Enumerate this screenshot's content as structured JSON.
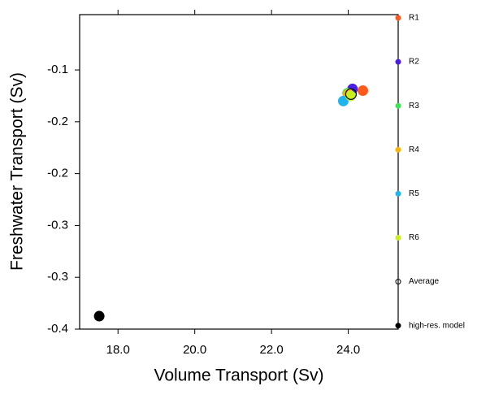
{
  "chart_data": {
    "type": "scatter",
    "x_label": "Volume Transport (Sv)",
    "y_label": "Freshwater Transport (Sv)",
    "xlim": [
      17,
      25.3
    ],
    "ylim": [
      -0.4,
      -0.036
    ],
    "xticks": [
      {
        "value": 18,
        "label": "18.0"
      },
      {
        "value": 20,
        "label": "20.0"
      },
      {
        "value": 22,
        "label": "22.0"
      },
      {
        "value": 24,
        "label": "24.0"
      }
    ],
    "yticks": [
      {
        "value": -0.1,
        "label": "-0.1"
      },
      {
        "value": -0.16,
        "label": "-0.2"
      },
      {
        "value": -0.22,
        "label": "-0.2"
      },
      {
        "value": -0.28,
        "label": "-0.3"
      },
      {
        "value": -0.34,
        "label": "-0.3"
      },
      {
        "value": -0.4,
        "label": "-0.4"
      }
    ],
    "series": [
      {
        "name": "R1",
        "color": "#ff5a1e",
        "x": [
          24.38
        ],
        "values": [
          -0.124
        ]
      },
      {
        "name": "R2",
        "color": "#4b1ee6",
        "x": [
          24.11
        ],
        "values": [
          -0.122
        ]
      },
      {
        "name": "R3",
        "color": "#3ce650",
        "x": [
          23.98
        ],
        "values": [
          -0.127
        ]
      },
      {
        "name": "R4",
        "color": "#ffb400",
        "x": [
          24.0
        ],
        "values": [
          -0.128
        ]
      },
      {
        "name": "R5",
        "color": "#1eb4f0",
        "x": [
          23.87
        ],
        "values": [
          -0.136
        ]
      },
      {
        "name": "R6",
        "color": "#c8f01e",
        "x": [
          24.06
        ],
        "values": [
          -0.13
        ]
      },
      {
        "name": "Average",
        "color": "#000000",
        "x": [
          24.07
        ],
        "values": [
          -0.128
        ]
      },
      {
        "name": "high-res. model",
        "color": "#000000",
        "x": [
          17.51
        ],
        "values": [
          -0.385
        ]
      }
    ]
  }
}
